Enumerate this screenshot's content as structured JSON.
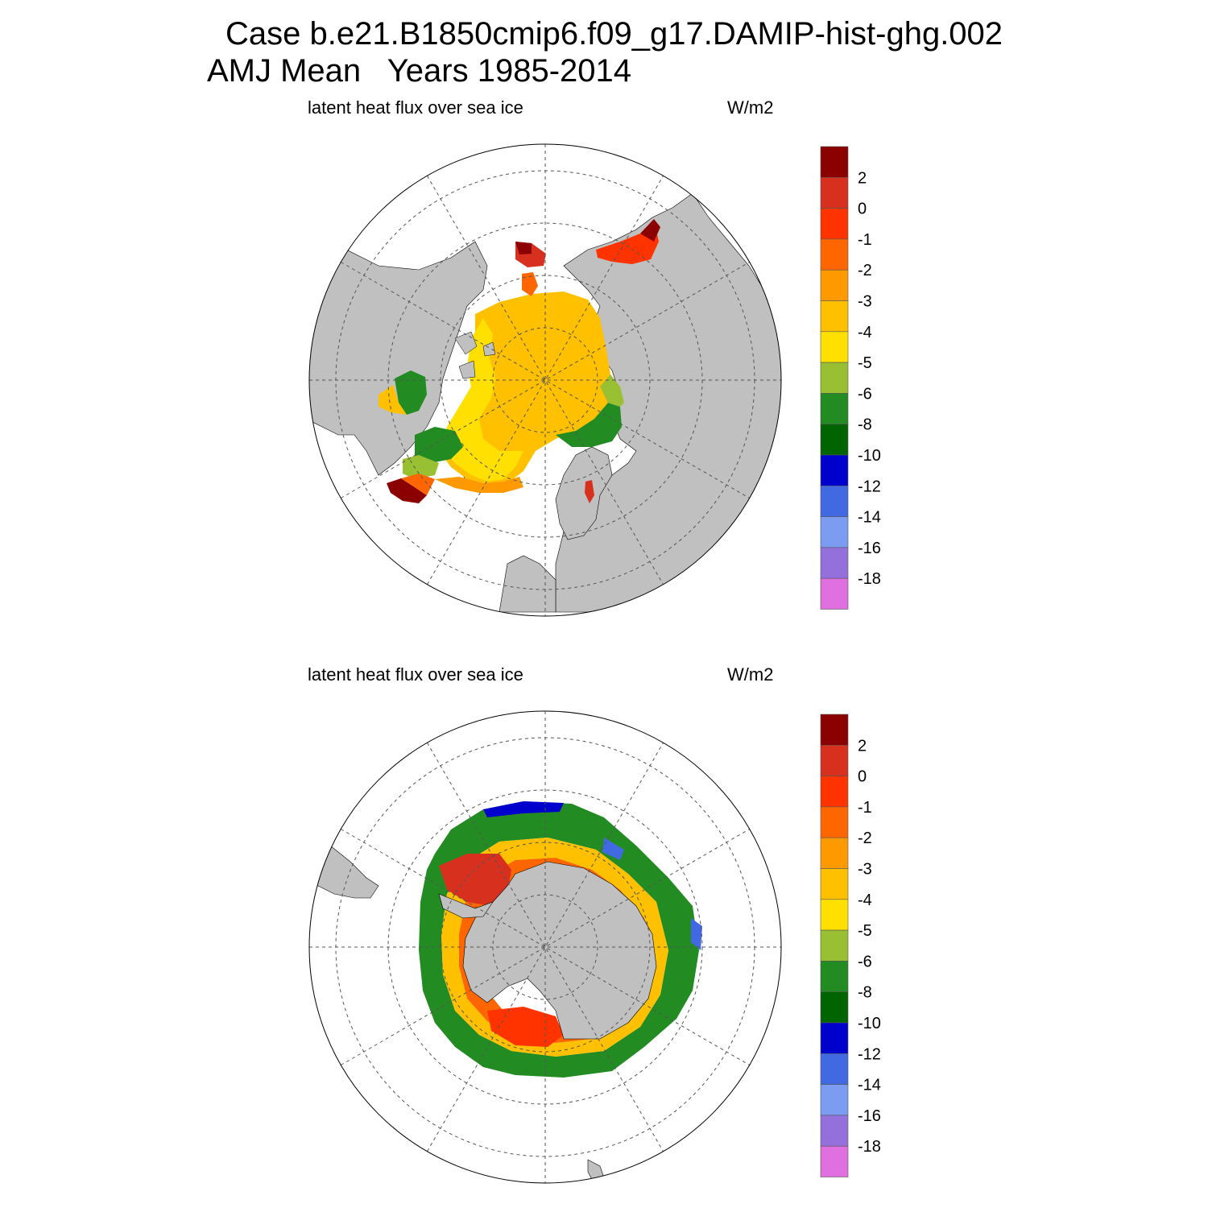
{
  "title": {
    "line1": "Case b.e21.B1850cmip6.f09_g17.DAMIP-hist-ghg.002",
    "line2": "AMJ Mean   Years 1985-2014"
  },
  "panels": [
    {
      "id": "north",
      "hemisphere": "north",
      "title": "latent heat flux over sea ice",
      "units": "W/m2"
    },
    {
      "id": "south",
      "hemisphere": "south",
      "title": "latent heat flux over sea ice",
      "units": "W/m2"
    }
  ],
  "colorbar": {
    "labels": [
      "2",
      "0",
      "-1",
      "-2",
      "-3",
      "-4",
      "-5",
      "-6",
      "-8",
      "-10",
      "-12",
      "-14",
      "-16",
      "-18"
    ],
    "colors": [
      "#8b0000",
      "#d7301f",
      "#ff3300",
      "#ff6600",
      "#ff9900",
      "#ffc000",
      "#ffe000",
      "#99bf33",
      "#228b22",
      "#006400",
      "#0000cd",
      "#4169e1",
      "#7b9cf0",
      "#9370db",
      "#e070e0"
    ]
  },
  "colors": {
    "land": "#c0c0c0",
    "ocean": "#ffffff",
    "grid": "#555555"
  }
}
